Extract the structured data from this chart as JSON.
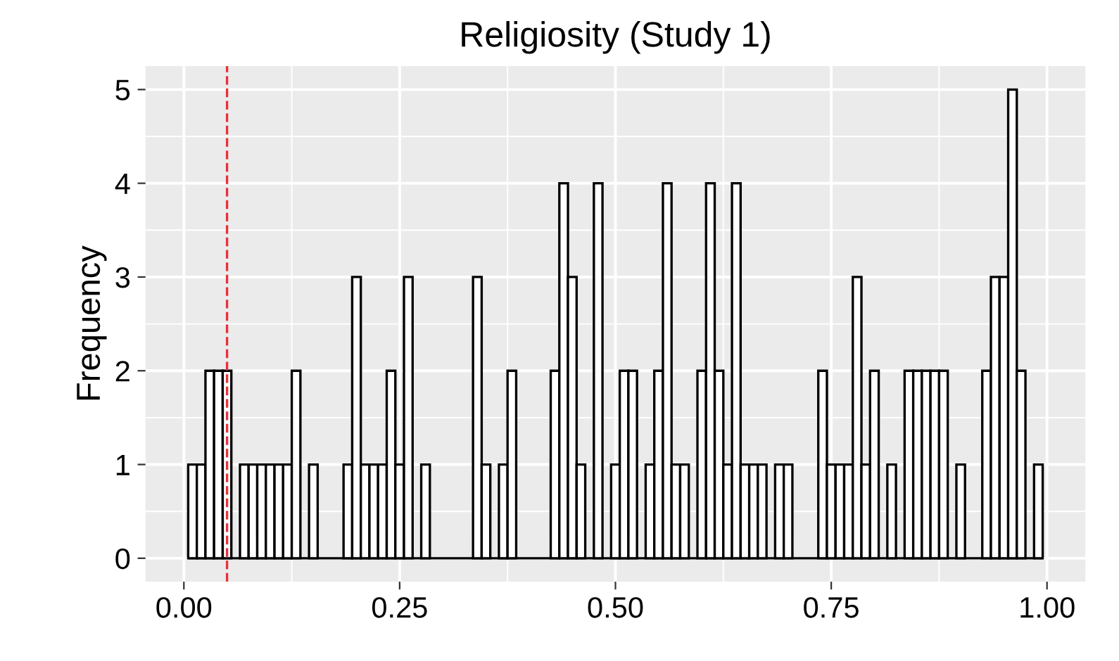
{
  "chart_data": {
    "type": "histogram",
    "title": "Religiosity (Study 1)",
    "ylabel": "Frequency",
    "bins": [
      0.005,
      0.015,
      0.025,
      0.035,
      0.045,
      0.055,
      0.065,
      0.075,
      0.085,
      0.095,
      0.105,
      0.115,
      0.125,
      0.135,
      0.145,
      0.155,
      0.165,
      0.175,
      0.185,
      0.195,
      0.205,
      0.215,
      0.225,
      0.235,
      0.245,
      0.255,
      0.265,
      0.275,
      0.285,
      0.295,
      0.305,
      0.315,
      0.325,
      0.335,
      0.345,
      0.355,
      0.365,
      0.375,
      0.385,
      0.395,
      0.405,
      0.415,
      0.425,
      0.435,
      0.445,
      0.455,
      0.465,
      0.475,
      0.485,
      0.495,
      0.505,
      0.515,
      0.525,
      0.535,
      0.545,
      0.555,
      0.565,
      0.575,
      0.585,
      0.595,
      0.605,
      0.615,
      0.625,
      0.635,
      0.645,
      0.655,
      0.665,
      0.675,
      0.685,
      0.695,
      0.705,
      0.715,
      0.725,
      0.735,
      0.745,
      0.755,
      0.765,
      0.775,
      0.785,
      0.795,
      0.805,
      0.815,
      0.825,
      0.835,
      0.845,
      0.855,
      0.865,
      0.875,
      0.885,
      0.895,
      0.905,
      0.915,
      0.925,
      0.935,
      0.945,
      0.955,
      0.965,
      0.975,
      0.985,
      0.995
    ],
    "values": [
      1,
      1,
      2,
      2,
      2,
      0,
      1,
      1,
      1,
      1,
      1,
      1,
      2,
      0,
      1,
      0,
      0,
      0,
      1,
      3,
      1,
      1,
      1,
      2,
      1,
      3,
      0,
      1,
      0,
      0,
      0,
      0,
      0,
      3,
      1,
      0,
      1,
      2,
      0,
      0,
      0,
      0,
      2,
      4,
      3,
      1,
      0,
      4,
      0,
      1,
      2,
      2,
      0,
      1,
      2,
      4,
      1,
      1,
      0,
      2,
      4,
      2,
      1,
      4,
      1,
      1,
      1,
      0,
      1,
      1,
      0,
      0,
      0,
      2,
      1,
      1,
      1,
      3,
      1,
      2,
      0,
      1,
      0,
      2,
      2,
      2,
      2,
      2,
      0,
      1,
      0,
      0,
      2,
      3,
      3,
      5,
      2,
      0,
      1
    ],
    "color": "#ffffff",
    "xlim": [
      -0.0445,
      1.0445
    ],
    "ylim": [
      -0.25,
      5.25
    ],
    "xticks": [
      {
        "value": 0,
        "label": "0.00"
      },
      {
        "value": 0.25,
        "label": "0.25"
      },
      {
        "value": 0.5,
        "label": "0.50"
      },
      {
        "value": 0.75,
        "label": "0.75"
      },
      {
        "value": 1,
        "label": "1.00"
      }
    ],
    "yticks": [
      0,
      1,
      2,
      3,
      4,
      5
    ],
    "ref_lines": [
      {
        "axis": "x",
        "value": 0.05,
        "color": "#e8313a",
        "line_style": "dashed"
      }
    ],
    "grid": true
  }
}
